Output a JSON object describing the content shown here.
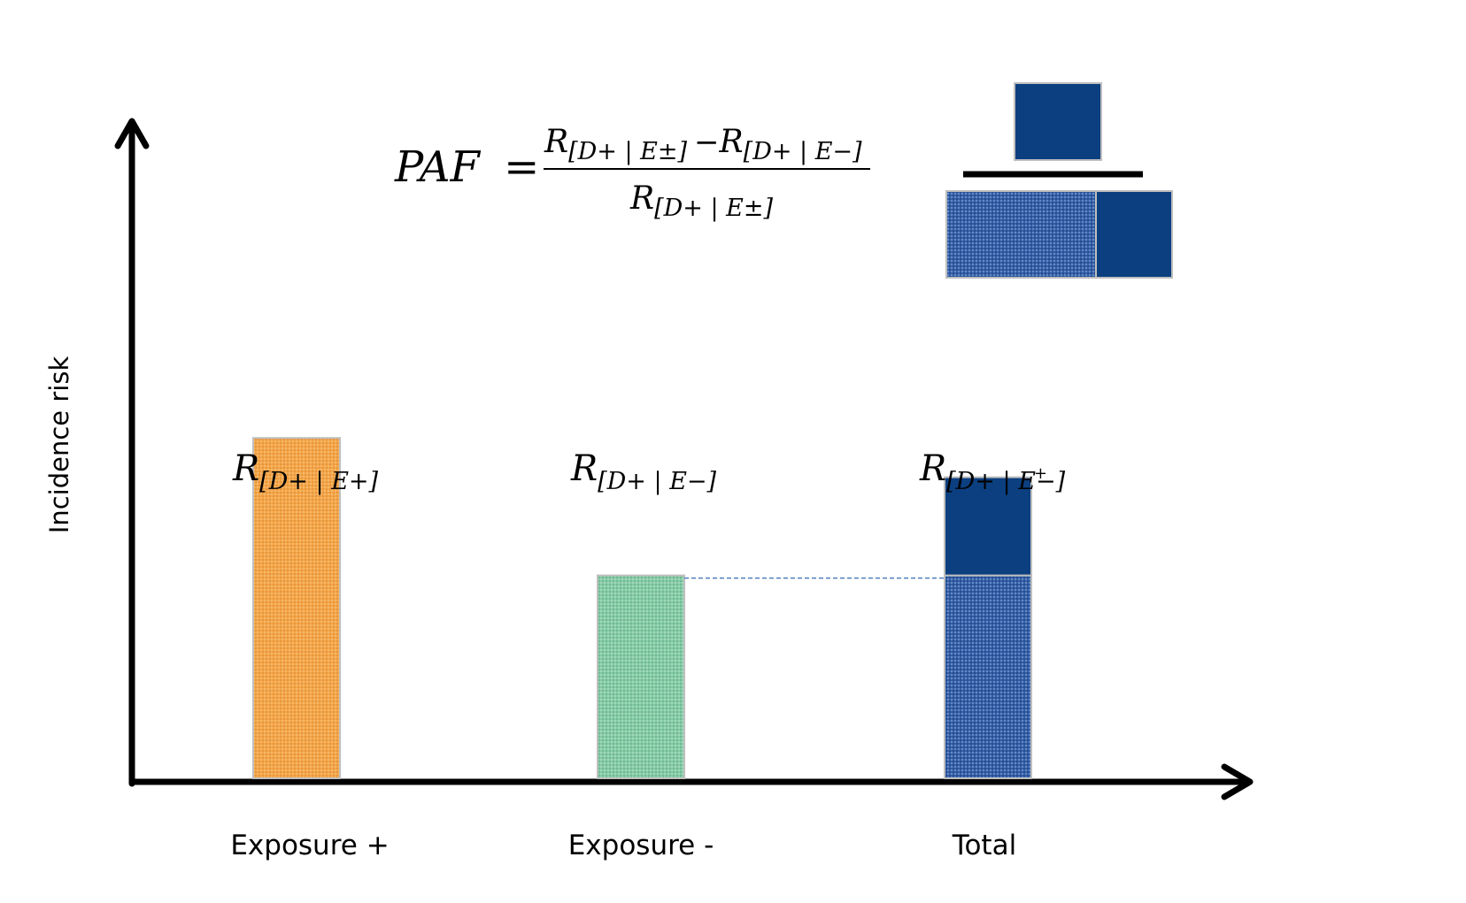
{
  "chart_data": {
    "type": "bar",
    "ylabel": "Incidence risk",
    "xlabel": "",
    "ylim": [
      0,
      1
    ],
    "categories": [
      "Exposure +",
      "Exposure -",
      "Total"
    ],
    "values": [
      0.52,
      0.31,
      0.46
    ],
    "total_split": {
      "unexposed_part": 0.31,
      "excess_part": 0.15
    },
    "bar_labels": {
      "exposed": {
        "R": "R",
        "sub": "[D+ | E+]"
      },
      "unexposed": {
        "R": "R",
        "sub": "[D+ | E−]"
      },
      "total": {
        "R": "R",
        "sub_a": "[D+ | E",
        "sup": "+",
        "sub_b": "−]"
      }
    },
    "colors": {
      "exposed": "#f0a043",
      "unexposed": "#7cc8a1",
      "total_base": "#274f93",
      "total_excess": "#0b3f80"
    }
  },
  "formula": {
    "lhs": "PAF",
    "eq": "=",
    "num_r1": "R",
    "num_s1": "[D+ | E±]",
    "minus": "−",
    "num_r2": "R",
    "num_s2": "[D+ | E−]",
    "den_r": "R",
    "den_s": "[D+ | E±]"
  }
}
